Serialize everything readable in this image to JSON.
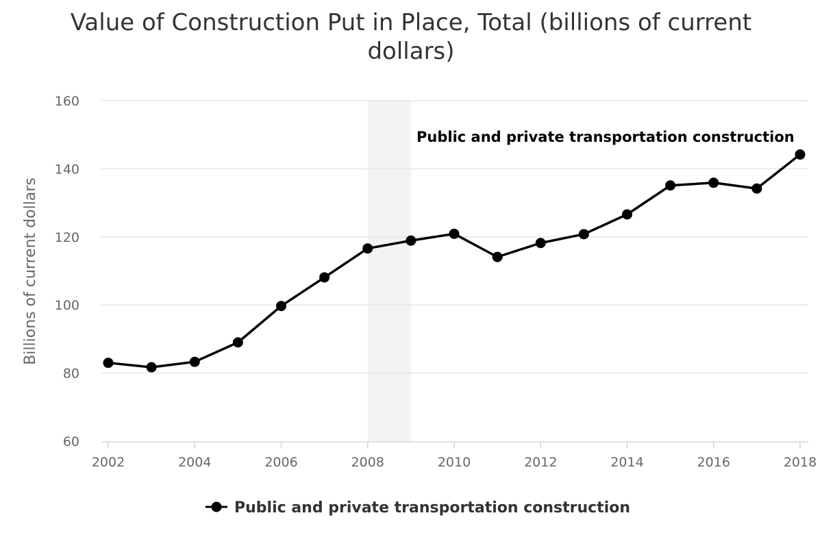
{
  "chart_data": {
    "type": "line",
    "title": "Value of Construction Put in Place, Total (billions of current dollars)",
    "xlabel": "",
    "ylabel": "Billions of current dollars",
    "x": [
      2002,
      2003,
      2004,
      2005,
      2006,
      2007,
      2008,
      2009,
      2010,
      2011,
      2012,
      2013,
      2014,
      2015,
      2016,
      2017,
      2018
    ],
    "x_ticks": [
      "2002",
      "2004",
      "2006",
      "2008",
      "2010",
      "2012",
      "2014",
      "2016",
      "2018"
    ],
    "y_ticks": [
      "60",
      "80",
      "100",
      "120",
      "140",
      "160"
    ],
    "ylim": [
      60,
      160
    ],
    "xlim": [
      2002,
      2018
    ],
    "grid": true,
    "shaded_band": {
      "from": 2008,
      "to": 2009,
      "color": "#f3f3f3"
    },
    "series": [
      {
        "name": "Public and private transportation construction",
        "color": "#000000",
        "values": [
          83.0,
          81.7,
          83.3,
          89.0,
          99.7,
          108.1,
          116.6,
          118.9,
          120.9,
          114.1,
          118.2,
          120.8,
          126.6,
          135.1,
          135.9,
          134.2,
          144.2
        ]
      }
    ],
    "annotation": "Public and private transportation construction",
    "legend": {
      "position": "bottom-center",
      "label": "Public and private transportation construction"
    }
  }
}
